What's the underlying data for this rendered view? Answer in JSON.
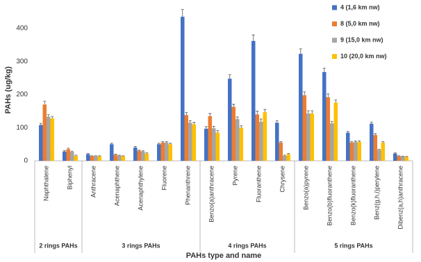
{
  "chart_data": {
    "type": "bar",
    "y_label": "PAHs (ug/kg)",
    "x_label": "PAHs type and name",
    "categories": [
      "Naphthalene",
      "Biphenyl",
      "Anthracene",
      "Acenaphthene",
      "Acenaphthylene",
      "Fluorene",
      "Phenanthrene",
      "Benzo(a)anthracene",
      "Pyrene",
      "Fluoranthene",
      "Chrysene",
      "Benzo(a)pyrene",
      "Benzo(b)fluoranthene",
      "Benzo(k)fluoranthene",
      "Benz(g,h,i)perylene",
      "Dibenz(a,h)anthracene"
    ],
    "group_labels": [
      "2 rings PAHs",
      "3 rings PAHs",
      "4 rings PAHs",
      "5 rings PAHs"
    ],
    "series": [
      {
        "name": "4 (1,6 km nw)",
        "color": "#4472c4",
        "values": [
          108,
          28,
          20,
          50,
          40,
          50,
          435,
          97,
          248,
          362,
          115,
          323,
          268,
          85,
          112,
          22
        ],
        "errors": [
          5,
          3,
          2,
          3,
          3,
          3,
          22,
          6,
          12,
          18,
          6,
          15,
          12,
          4,
          5,
          2
        ]
      },
      {
        "name": "8 (5,0 km nw)",
        "color": "#ed7d31",
        "values": [
          170,
          35,
          14,
          18,
          30,
          55,
          138,
          135,
          163,
          140,
          55,
          198,
          192,
          55,
          78,
          14
        ],
        "errors": [
          10,
          3,
          1,
          2,
          2,
          3,
          8,
          8,
          8,
          10,
          3,
          10,
          10,
          3,
          4,
          1
        ]
      },
      {
        "name": "9 (15,0 km nw)",
        "color": "#a5a5a5",
        "values": [
          133,
          27,
          14,
          16,
          28,
          55,
          115,
          98,
          126,
          118,
          15,
          143,
          113,
          57,
          33,
          13
        ],
        "errors": [
          6,
          2,
          1,
          1,
          2,
          3,
          6,
          6,
          6,
          8,
          2,
          8,
          6,
          3,
          2,
          1
        ]
      },
      {
        "name": "10 (20,0 km nw)",
        "color": "#ffc000",
        "values": [
          128,
          15,
          14,
          14,
          22,
          50,
          110,
          85,
          100,
          147,
          20,
          143,
          176,
          57,
          55,
          12
        ],
        "errors": [
          6,
          2,
          1,
          1,
          2,
          3,
          6,
          6,
          6,
          8,
          2,
          8,
          8,
          3,
          3,
          1
        ]
      }
    ],
    "ylim": [
      0,
      450
    ],
    "yticks": [
      0,
      100,
      200,
      300,
      400
    ],
    "grid": false,
    "legend": "top-right"
  }
}
